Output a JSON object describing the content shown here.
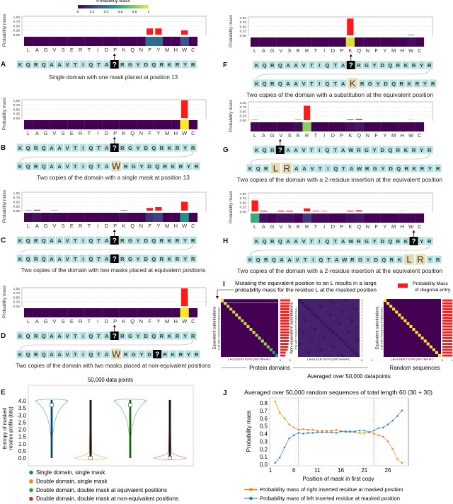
{
  "colorbar": {
    "title": "Probability Mass",
    "ticks": [
      "0",
      "0.2",
      "0.4",
      "0.6",
      "0.8",
      "1"
    ]
  },
  "residues": [
    "L",
    "A",
    "G",
    "V",
    "S",
    "E",
    "R",
    "T",
    "I",
    "D",
    "P",
    "K",
    "Q",
    "N",
    "F",
    "Y",
    "M",
    "H",
    "W",
    "C"
  ],
  "prob_axis": {
    "label": "Probability mass",
    "ticks": [
      "1.00",
      "0.75",
      "0.50",
      "0.25",
      "0.00"
    ]
  },
  "colors": {
    "bar": "#ff1a1a",
    "residue_box": "#b9e0df",
    "highlight_box": "#e3dcb6",
    "mask_box": "#000000"
  },
  "panels": [
    {
      "label": "A",
      "probs": [
        0,
        0,
        0,
        0,
        0,
        0,
        0,
        0,
        0,
        0,
        0,
        0,
        0,
        0,
        0.35,
        0.35,
        0,
        0,
        0.25,
        0
      ],
      "seq1": "KQRQAAVTIQTA?RGYDQRKRYR",
      "seq2": "",
      "highlight": [],
      "caption": "Single domain with one mask placed at position 13"
    },
    {
      "label": "B",
      "probs": [
        0,
        0,
        0,
        0,
        0,
        0,
        0,
        0,
        0,
        0,
        0,
        0,
        0,
        0,
        0,
        0,
        0,
        0,
        1.0,
        0
      ],
      "seq1": "KQRQAAVTIQTA?RGYDQRKRYR",
      "seq2": "KQRQAAVTIQTAWRGYDQRKRYR",
      "highlight": [
        12
      ],
      "caption": "Two copies of the domain with a single mask at position 13"
    },
    {
      "label": "C",
      "probs": [
        0.02,
        0.05,
        0,
        0.02,
        0,
        0,
        0,
        0,
        0,
        0,
        0,
        0.03,
        0,
        0,
        0.15,
        0.2,
        0,
        0,
        0.5,
        0
      ],
      "seq1": "KQRQAAVTIQTA?RGYDQRKRYR",
      "seq2": "KQRQAAVTIQTA?RGYDQRKRYR",
      "highlight": [],
      "caption": "Two copies of the domain with two masks placed at equivalent positions"
    },
    {
      "label": "D",
      "probs": [
        0,
        0,
        0,
        0,
        0,
        0,
        0,
        0,
        0,
        0,
        0,
        0,
        0,
        0,
        0,
        0,
        0,
        0,
        1.0,
        0
      ],
      "seq1": "KQRQAAVTIQTA?RGYDQRKRYR",
      "seq2": "KQRQAAVTIQTAWRGYD?RKRYR",
      "highlight": [
        12
      ],
      "caption": "Two copies of the domain with two masks placed at non-equivalent positions"
    },
    {
      "label": "F",
      "probs": [
        0,
        0,
        0,
        0,
        0,
        0,
        0,
        0,
        0,
        0,
        0,
        0.95,
        0,
        0,
        0,
        0,
        0,
        0,
        0.03,
        0
      ],
      "seq1": "KQRQAAVTIQTA?RGYDQRKRYR",
      "seq2": "KQRQAAVTIQTAKRGYDQRKRYR",
      "highlight": [
        12
      ],
      "caption": "Two copies of the domain with a substitution at the equivalent position"
    },
    {
      "label": "G",
      "probs": [
        0.02,
        0,
        0,
        0,
        0,
        0.02,
        0.82,
        0,
        0,
        0,
        0,
        0.04,
        0.06,
        0,
        0,
        0,
        0,
        0,
        0.01,
        0
      ],
      "seq1": "KQR?AAVTIQTAWRGYDQRKRYR",
      "seq2": "KQRLRAAVTIQTAWRGYDQRKRYR",
      "highlight": [
        3,
        4
      ],
      "caption": "Two copies of the domain with a 2-residue insertion at the equivalent position"
    },
    {
      "label": "H",
      "probs": [
        0.62,
        0.04,
        0,
        0.04,
        0.04,
        0,
        0.17,
        0.03,
        0.02,
        0,
        0,
        0.04,
        0.06,
        0,
        0,
        0,
        0,
        0.01,
        0,
        0
      ],
      "seq1": "KQRQAAVTIQTAWRGYDQRK?YR",
      "seq2": "KQRQAAVTIQTAWRGYDQRKLRYR",
      "highlight": [
        20,
        21
      ],
      "caption": "Two copies of the domain with a 2-residue insertion at the equivalent position"
    }
  ],
  "panel_I": {
    "label": "I",
    "annotation": [
      "Mutating the equivalent position to an L results in a large",
      "probability mass for the residue L at the masked position"
    ],
    "legend": [
      "Probability Mass",
      "of diagonal entry"
    ],
    "matrices": [
      {
        "ylabel": "Equivalent substitutions",
        "diagonal": [
          1,
          0.97,
          0.93,
          0.92,
          0.9,
          0.92,
          0.93,
          0.88,
          0.92,
          0.92,
          0.9,
          0.92,
          0.88,
          0.85,
          0.88,
          0.83,
          0.8,
          0.75,
          0.55,
          0.5
        ]
      },
      {
        "ylabel": "Non-equivalent substitutions",
        "diagonal": [
          0.06,
          0.05,
          0.05,
          0.04,
          0.05,
          0.05,
          0.05,
          0.04,
          0.05,
          0.05,
          0.05,
          0.04,
          0.05,
          0.05,
          0.04,
          0.05,
          0.04,
          0.04,
          0.04,
          0.04
        ]
      },
      {
        "ylabel": "Equivalent substitutions",
        "diagonal": [
          1,
          1,
          1,
          1,
          1,
          1,
          1,
          1,
          1,
          1,
          1,
          1,
          1,
          1,
          1,
          1,
          1,
          1,
          1,
          1
        ]
      }
    ],
    "axis_letters": "LAGVSERTIDPKQNFYMHWC",
    "axis_letters_rev": "CWHMYFNQKPDITRESVGAL",
    "bar_ticks": [
      "0",
      "1"
    ],
    "group_labels": {
      "protein": "Protein domains",
      "random": "Random sequences",
      "averaged": "Averaged over 50,000 datapoints"
    }
  },
  "chart_data": [
    {
      "type": "violin",
      "panel_label": "E",
      "title": "50,000 data points",
      "ylabel": [
        "Entropy of masked",
        "residue profile (bits)"
      ],
      "yticks": [
        "0.0",
        "0.5",
        "1.0",
        "1.5",
        "2.0",
        "2.5",
        "3.0",
        "3.5",
        "4.0"
      ],
      "ylim": [
        0,
        4.2
      ],
      "series": [
        {
          "name": "Single domain, single mask",
          "color": "#1f77b4",
          "median": 3.7
        },
        {
          "name": "Double domain, single mask",
          "color": "#ff7f0e",
          "median": 0.0
        },
        {
          "name": "Double domain, double mask at equivalent positions",
          "color": "#2ca02c",
          "median": 3.7
        },
        {
          "name": "Double domain, double mask at non-equivalent positions",
          "color": "#d62728",
          "median": 0.0
        }
      ],
      "legend": "bottom"
    },
    {
      "type": "line",
      "panel_label": "J",
      "title": "Averaged over 50,000 random sequences of total length 60 (30 + 30)",
      "xlabel": "Position of mask in first copy",
      "ylabel": "Probability mass",
      "xticks": [
        "1",
        "6",
        "11",
        "16",
        "21",
        "26"
      ],
      "yticks": [
        "0.0",
        "0.1",
        "0.2",
        "0.3",
        "0.4",
        "0.5",
        "0.6",
        "0.7",
        "0.8"
      ],
      "xlim": [
        1,
        30
      ],
      "ylim": [
        0,
        0.83
      ],
      "vlines": [
        7,
        23
      ],
      "x": [
        2,
        3,
        4,
        5,
        6,
        7,
        8,
        9,
        10,
        11,
        12,
        13,
        14,
        15,
        16,
        17,
        18,
        19,
        20,
        21,
        22,
        23,
        24,
        25,
        26,
        27,
        28,
        29
      ],
      "series": [
        {
          "name": "Probability mass of right inserted residue at masked position",
          "color": "#ff7f0e",
          "values": [
            0.82,
            0.67,
            0.6,
            0.52,
            0.48,
            0.45,
            0.46,
            0.45,
            0.45,
            0.44,
            0.44,
            0.44,
            0.44,
            0.45,
            0.43,
            0.42,
            0.42,
            0.42,
            0.41,
            0.41,
            0.42,
            0.4,
            0.38,
            0.36,
            0.3,
            0.2,
            0.07,
            0.02
          ]
        },
        {
          "name": "Probability mass of left inserted residue at masked position",
          "color": "#1f77b4",
          "values": [
            0.02,
            0.09,
            0.22,
            0.34,
            0.38,
            0.41,
            0.4,
            0.41,
            0.41,
            0.42,
            0.42,
            0.42,
            0.42,
            0.41,
            0.43,
            0.43,
            0.43,
            0.43,
            0.44,
            0.44,
            0.42,
            0.44,
            0.47,
            0.48,
            0.52,
            0.57,
            0.63,
            0.7
          ]
        }
      ],
      "legend": "bottom"
    }
  ]
}
